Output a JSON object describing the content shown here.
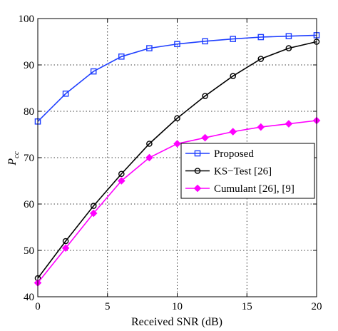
{
  "chart_data": {
    "type": "line",
    "xlabel": "Received SNR (dB)",
    "ylabel": {
      "main": "P",
      "sub": "cc"
    },
    "xlim": [
      0,
      20
    ],
    "ylim": [
      40,
      100
    ],
    "x_ticks": [
      0,
      5,
      10,
      15,
      20
    ],
    "y_ticks": [
      40,
      50,
      60,
      70,
      80,
      90,
      100
    ],
    "grid": true,
    "legend_position": "center-right",
    "x": [
      0,
      2,
      4,
      6,
      8,
      10,
      12,
      14,
      16,
      18,
      20
    ],
    "series": [
      {
        "name": "Proposed",
        "color": "#1f3fff",
        "marker": "square",
        "values": [
          77.8,
          83.8,
          88.6,
          91.8,
          93.6,
          94.5,
          95.1,
          95.6,
          96.0,
          96.2,
          96.4
        ]
      },
      {
        "name": "KS−Test [26]",
        "color": "#000000",
        "marker": "circle",
        "values": [
          44.0,
          52.0,
          59.6,
          66.5,
          73.0,
          78.5,
          83.3,
          87.6,
          91.3,
          93.6,
          95.0
        ]
      },
      {
        "name": "Cumulant [26], [9]",
        "color": "#ff00ff",
        "marker": "diamond",
        "values": [
          43.0,
          50.5,
          58.0,
          65.0,
          70.0,
          73.0,
          74.3,
          75.6,
          76.6,
          77.3,
          78.0
        ]
      }
    ]
  }
}
